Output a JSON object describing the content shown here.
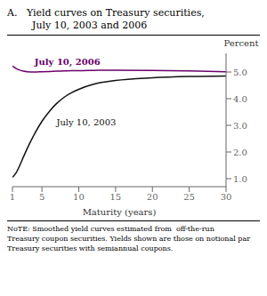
{
  "chart_data": {
    "type": "line",
    "title": "A.   Yield curves on Treasury securities,",
    "subtitle": "        July 10, 2003 and 2006",
    "x_label": "Maturity (years)",
    "y_label": "Percent",
    "note": "NᴏTE: Smoothed yield curves estimated from  off-the-run\nTreasury coupon securities. Yields shown are those on notional par\nTreasury securities with semiannual coupons.",
    "x": [
      1,
      1.5,
      2,
      2.5,
      3,
      4,
      5,
      6,
      7,
      8,
      9,
      10,
      12,
      15,
      20,
      25,
      30
    ],
    "series": [
      {
        "name": "July 10, 2006",
        "color": "#6B006B",
        "values": [
          5.22,
          5.13,
          5.07,
          5.03,
          5.01,
          5.0,
          5.01,
          5.02,
          5.03,
          5.04,
          5.05,
          5.05,
          5.06,
          5.07,
          5.06,
          5.04,
          5.01
        ]
      },
      {
        "name": "July 10, 2003",
        "color": "#111111",
        "values": [
          1.05,
          1.22,
          1.5,
          1.82,
          2.13,
          2.68,
          3.15,
          3.52,
          3.82,
          4.05,
          4.22,
          4.35,
          4.54,
          4.68,
          4.78,
          4.83,
          4.85
        ]
      }
    ],
    "xlim": [
      1,
      30
    ],
    "xticks": [
      1,
      5,
      10,
      15,
      20,
      25,
      30
    ],
    "ylim": [
      0.7,
      5.7
    ],
    "yticks": [
      {
        "value": 1.0,
        "label": "1.0"
      },
      {
        "value": 2.0,
        "label": "2.0"
      },
      {
        "value": 3.0,
        "label": "3.0"
      },
      {
        "value": 4.0,
        "label": "4.0"
      },
      {
        "value": 5.0,
        "label": "5.0"
      }
    ],
    "grid": false
  }
}
